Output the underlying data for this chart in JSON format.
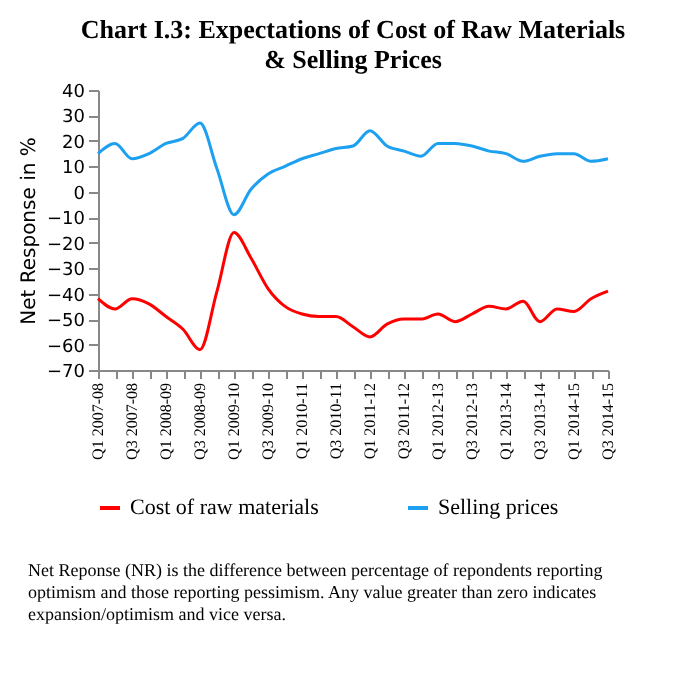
{
  "chart_data": {
    "type": "line",
    "title": "Chart I.3: Expectations of Cost of Raw Materials & Selling Prices",
    "ylabel": "Net Response in %",
    "categories": [
      "Q1 2007-08",
      null,
      "Q3 2007-08",
      null,
      "Q1 2008-09",
      null,
      "Q3 2008-09",
      null,
      "Q1 2009-10",
      null,
      "Q3 2009-10",
      null,
      "Q1 2010-11",
      null,
      "Q3 2010-11",
      null,
      "Q1 2011-12",
      null,
      "Q3 2011-12",
      null,
      "Q1 2012-13",
      null,
      "Q3 2012-13",
      null,
      "Q1 2013-14",
      null,
      "Q3 2013-14",
      null,
      "Q1 2014-15",
      null,
      "Q3 2014-15"
    ],
    "series": [
      {
        "name": "Cost of raw materials",
        "color": "#ff0000",
        "values": [
          -42,
          -46,
          -42,
          -44,
          -49,
          -54,
          -62,
          -39,
          -16,
          -26,
          -38,
          -45,
          -48,
          -49,
          -49,
          -53,
          -57,
          -52,
          -50,
          -50,
          -48,
          -51,
          -48,
          -45,
          -46,
          -43,
          -51,
          -46,
          -47,
          -42,
          -39
        ]
      },
      {
        "name": "Selling prices",
        "color": "#1ea0f0",
        "values": [
          15,
          19,
          13,
          15,
          19,
          21,
          27,
          9,
          -9,
          1,
          7,
          10,
          13,
          15,
          17,
          18,
          24,
          18,
          16,
          14,
          19,
          19,
          18,
          16,
          15,
          12,
          14,
          15,
          15,
          12,
          13
        ]
      }
    ],
    "ylim": [
      -70,
      40
    ],
    "yticks": [
      -70,
      -60,
      -50,
      -40,
      -30,
      -20,
      -10,
      0,
      10,
      20,
      30,
      40
    ],
    "legend": "bottom",
    "annotations": [
      "Net Reponse (NR) is the difference between percentage of repondents reporting optimism and those reporting pessimism. Any value greater than zero indicates expansion/optimism and vice versa."
    ]
  }
}
